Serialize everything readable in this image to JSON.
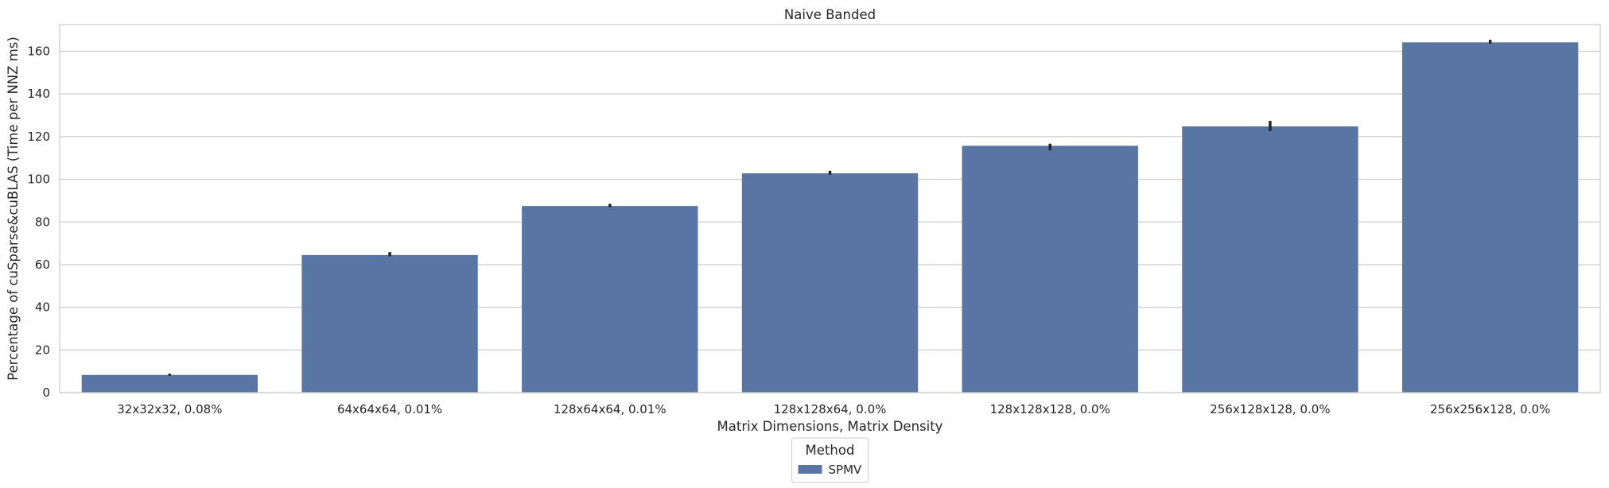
{
  "chart_data": {
    "type": "bar",
    "title": "Naive Banded",
    "xlabel": "Matrix Dimensions, Matrix Density",
    "ylabel": "Percentage of cuSparse&cuBLAS (Time per NNZ ms)",
    "categories": [
      "32x32x32, 0.08%",
      "64x64x64, 0.01%",
      "128x64x64, 0.01%",
      "128x128x64, 0.0%",
      "128x128x128, 0.0%",
      "256x128x128, 0.0%",
      "256x256x128, 0.0%"
    ],
    "series": [
      {
        "name": "SPMV",
        "values": [
          8.3,
          64.5,
          87.5,
          102.8,
          115.7,
          124.8,
          164.2
        ],
        "error_low": [
          7.9,
          63.9,
          86.9,
          102.2,
          113.6,
          122.6,
          163.6
        ],
        "error_high": [
          8.9,
          65.9,
          88.5,
          104.0,
          116.7,
          127.4,
          165.4
        ],
        "color": "#5975a4"
      }
    ],
    "ylim": [
      0,
      172.5
    ],
    "yticks": [
      0,
      20,
      40,
      60,
      80,
      100,
      120,
      140,
      160
    ],
    "grid": true,
    "legend": {
      "title": "Method",
      "placement": "below-center"
    }
  },
  "colors": {
    "bar": "#5975a4",
    "grid": "#cccccc",
    "axes_edge": "#cccccc",
    "error_bar": "#262626",
    "text": "#262626"
  }
}
